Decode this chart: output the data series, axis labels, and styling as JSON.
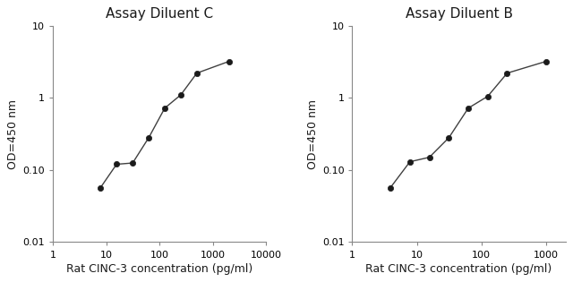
{
  "left": {
    "title": "Assay Diluent C",
    "x": [
      7.8,
      15.6,
      31.25,
      62.5,
      125,
      250,
      500,
      2000
    ],
    "y": [
      0.057,
      0.12,
      0.125,
      0.28,
      0.72,
      1.1,
      2.2,
      3.2
    ],
    "xlim": [
      1,
      10000
    ],
    "ylim": [
      0.01,
      10
    ],
    "xtick_vals": [
      1,
      10,
      100,
      1000,
      10000
    ],
    "xtick_labels": [
      "1",
      "10",
      "100",
      "1000",
      "10000"
    ],
    "ytick_vals": [
      0.01,
      0.1,
      1.0,
      10
    ],
    "ytick_labels": [
      "0.01",
      "0.10",
      "1",
      "10"
    ],
    "xlabel": "Rat CINC-3 concentration (pg/ml)",
    "ylabel": "OD=450 nm"
  },
  "right": {
    "title": "Assay Diluent B",
    "x": [
      3.9,
      7.8,
      15.6,
      31.25,
      62.5,
      125,
      250,
      1000
    ],
    "y": [
      0.057,
      0.13,
      0.15,
      0.28,
      0.72,
      1.05,
      2.2,
      3.2
    ],
    "xlim": [
      1,
      2000
    ],
    "ylim": [
      0.01,
      10
    ],
    "xtick_vals": [
      1,
      10,
      100,
      1000
    ],
    "xtick_labels": [
      "1",
      "10",
      "100",
      "1000"
    ],
    "ytick_vals": [
      0.01,
      0.1,
      1.0,
      10
    ],
    "ytick_labels": [
      "0.01",
      "0.10",
      "1",
      "10"
    ],
    "xlabel": "Rat CINC-3 concentration (pg/ml)",
    "ylabel": "OD=450 nm"
  },
  "line_color": "#404040",
  "marker_color": "#1a1a1a",
  "bg_color": "#ffffff",
  "title_fontsize": 11,
  "label_fontsize": 9,
  "tick_fontsize": 8
}
